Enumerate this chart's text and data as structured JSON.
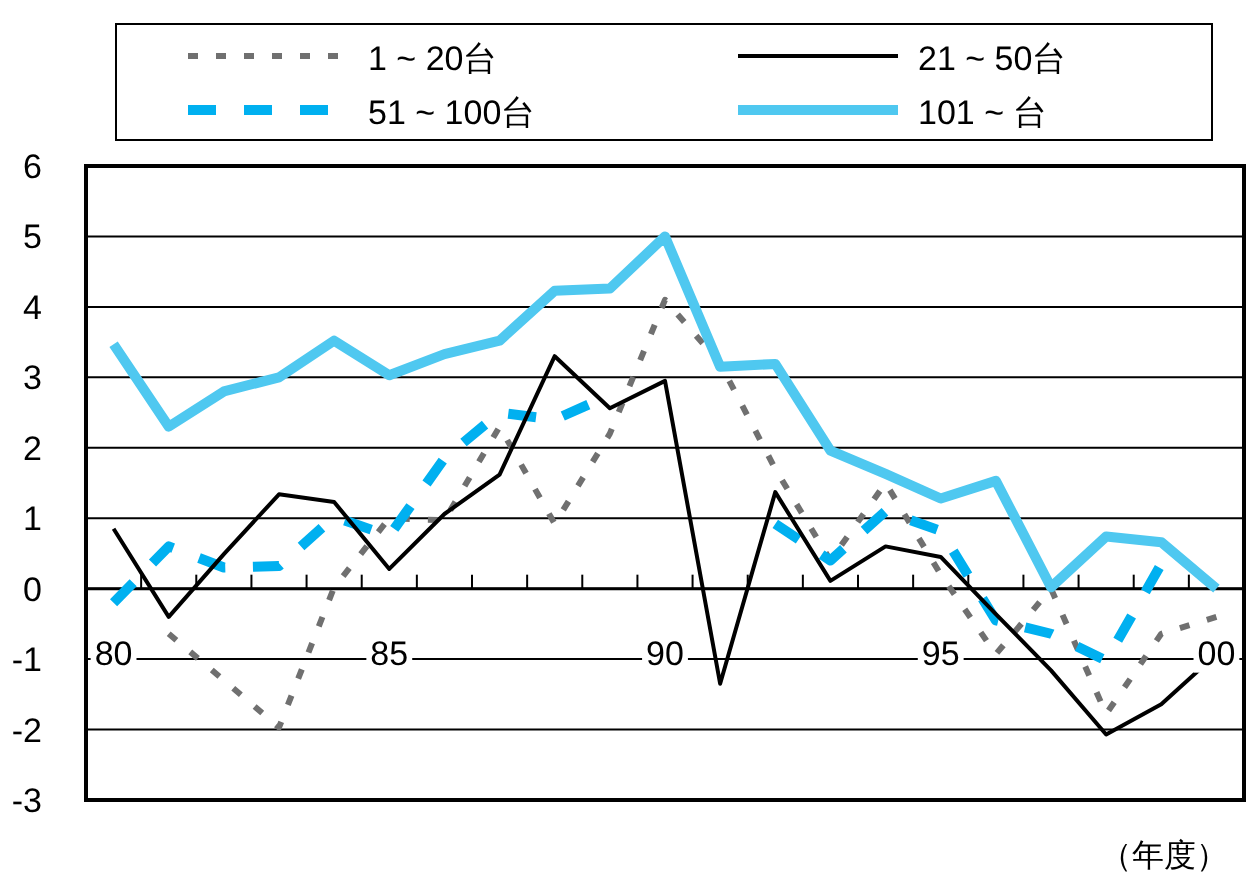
{
  "chart_data": {
    "type": "line",
    "categories": [
      "80",
      null,
      null,
      null,
      null,
      "85",
      null,
      null,
      null,
      null,
      "90",
      null,
      null,
      null,
      null,
      "95",
      null,
      null,
      null,
      null,
      "00"
    ],
    "series": [
      {
        "name": "1 ~ 20台",
        "color": "#707070",
        "line_style": "dotted",
        "values": [
          null,
          -0.64,
          -1.3,
          -1.97,
          0.02,
          1.0,
          0.97,
          2.3,
          0.92,
          2.2,
          4.1,
          3.2,
          1.7,
          0.4,
          1.5,
          0.2,
          -0.93,
          0.0,
          -1.78,
          -0.64,
          -0.4
        ]
      },
      {
        "name": "21 ~ 50台",
        "color": "#000000",
        "line_style": "solid",
        "values": [
          0.85,
          -0.4,
          0.49,
          1.34,
          1.23,
          0.28,
          1.06,
          1.62,
          3.3,
          2.56,
          2.95,
          -1.35,
          1.37,
          0.11,
          0.6,
          0.45,
          -0.36,
          -1.16,
          -2.07,
          -1.64,
          -0.93
        ]
      },
      {
        "name": "51 ~ 100台",
        "color": "#00b0f0",
        "line_style": "dashed",
        "values": [
          -0.2,
          0.6,
          0.3,
          0.32,
          1.02,
          0.75,
          1.85,
          2.5,
          2.4,
          2.75,
          null,
          null,
          0.92,
          0.4,
          1.1,
          0.82,
          -0.45,
          -0.64,
          -1.02,
          0.35,
          null
        ]
      },
      {
        "name": "101 ~ 台",
        "color": "#4fc8f0",
        "line_style": "solid",
        "values": [
          3.47,
          2.3,
          2.8,
          3.0,
          3.52,
          3.03,
          3.33,
          3.52,
          4.23,
          4.26,
          5.0,
          3.15,
          3.19,
          1.96,
          1.63,
          1.28,
          1.53,
          0.02,
          0.74,
          0.66,
          0.0
        ]
      }
    ],
    "ylim": [
      -3,
      6
    ],
    "yticks": [
      -3,
      -2,
      -1,
      0,
      1,
      2,
      3,
      4,
      5,
      6
    ],
    "xlabel": "（年度）",
    "grid": "y",
    "legend": "top",
    "marker": "none"
  }
}
